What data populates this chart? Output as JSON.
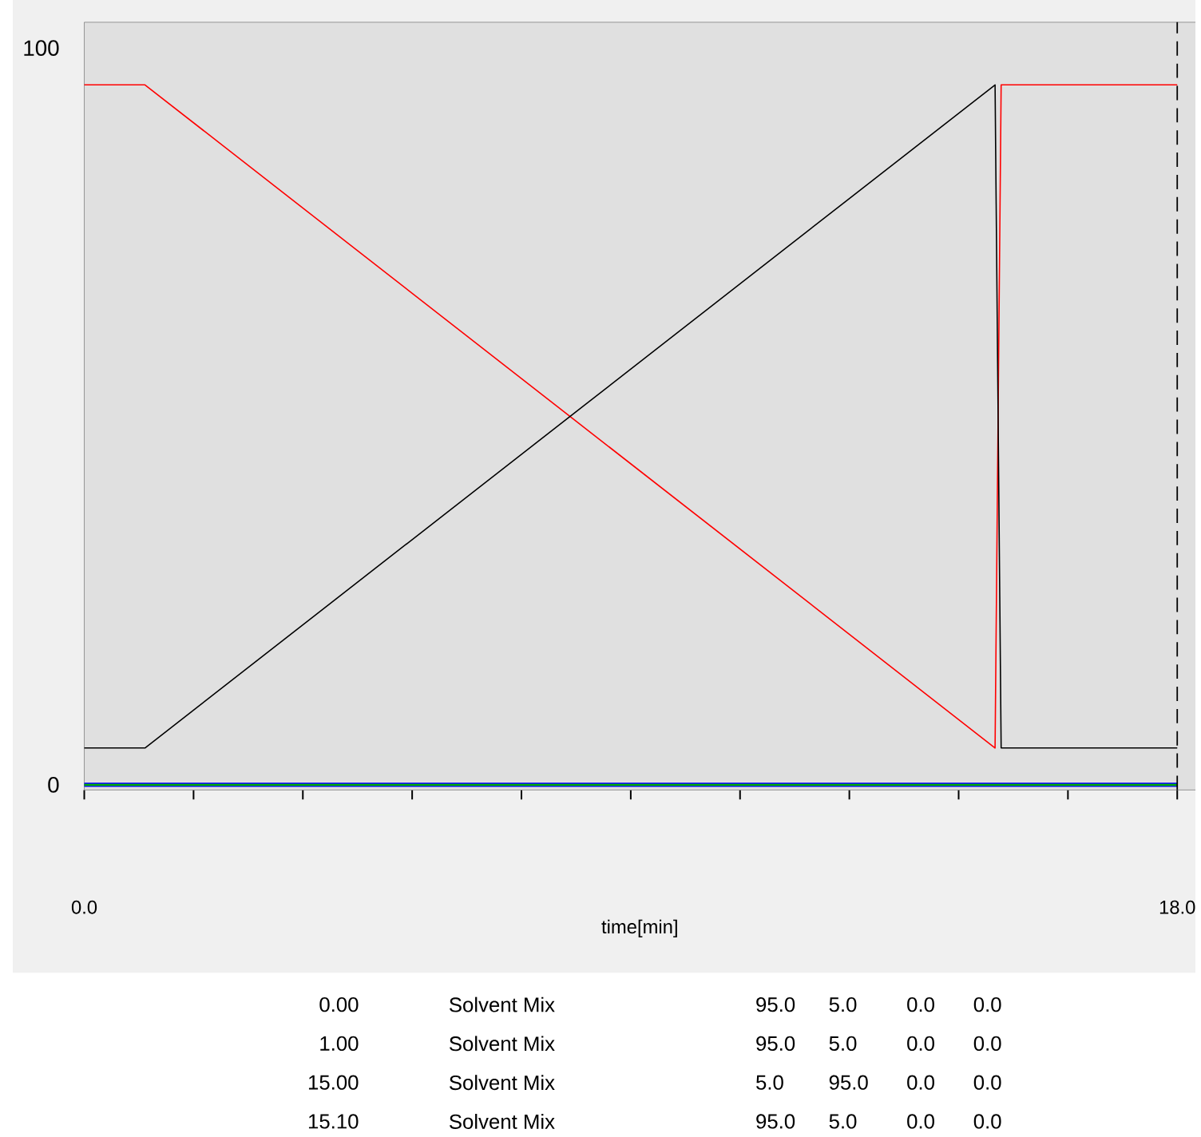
{
  "chart_data": {
    "type": "line",
    "xlabel": "time[min]",
    "x": [
      0,
      1,
      15,
      15.1,
      18
    ],
    "series": [
      {
        "color": "#ff0000",
        "values": [
          95,
          95,
          5,
          95,
          95
        ]
      },
      {
        "color": "#000000",
        "values": [
          5,
          5,
          95,
          5,
          5
        ]
      },
      {
        "color": "#0000ff",
        "values": [
          0,
          0,
          0,
          0,
          0
        ]
      },
      {
        "color": "#00b000",
        "values": [
          0,
          0,
          0,
          0,
          0
        ]
      }
    ],
    "xlim": [
      0,
      18.3
    ],
    "ylim": [
      -0.7,
      103.5
    ],
    "xticks": [
      {
        "value": 0,
        "label": "0.0"
      },
      {
        "value": 1.8,
        "label": null
      },
      {
        "value": 3.6,
        "label": null
      },
      {
        "value": 5.4,
        "label": null
      },
      {
        "value": 7.2,
        "label": null
      },
      {
        "value": 9,
        "label": null
      },
      {
        "value": 10.8,
        "label": null
      },
      {
        "value": 12.6,
        "label": null
      },
      {
        "value": 14.4,
        "label": null
      },
      {
        "value": 16.2,
        "label": null
      },
      {
        "value": 18,
        "label": "18.0"
      }
    ],
    "yticks": [
      0,
      100
    ],
    "grid": false,
    "marker": "none",
    "line_style": "solid",
    "ref_lines": [
      {
        "axis": "x",
        "value": 18,
        "color": "#000000",
        "line_style": "dashed"
      }
    ],
    "annotations": [
      "0.00",
      "Solvent Mix",
      "95.0",
      "5.0",
      "0.0",
      "0.0",
      "1.00",
      "Solvent Mix",
      "95.0",
      "5.0",
      "0.0",
      "0.0",
      "15.00",
      "Solvent Mix",
      "5.0",
      "95.0",
      "0.0",
      "0.0",
      "15.10",
      "Solvent Mix",
      "95.0",
      "5.0",
      "0.0",
      "0.0"
    ]
  }
}
